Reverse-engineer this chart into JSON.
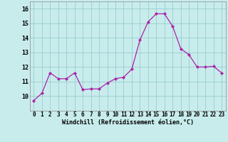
{
  "x": [
    0,
    1,
    2,
    3,
    4,
    5,
    6,
    7,
    8,
    9,
    10,
    11,
    12,
    13,
    14,
    15,
    16,
    17,
    18,
    19,
    20,
    21,
    22,
    23
  ],
  "y": [
    9.7,
    10.2,
    11.6,
    11.2,
    11.2,
    11.6,
    10.45,
    10.5,
    10.5,
    10.9,
    11.2,
    11.3,
    11.85,
    13.85,
    15.1,
    15.65,
    15.65,
    14.8,
    13.25,
    12.85,
    12.0,
    12.0,
    12.05,
    11.6
  ],
  "line_color": "#aa22aa",
  "marker_color": "#aa22aa",
  "bg_color": "#c8ecec",
  "grid_color": "#99cccc",
  "xlabel_text": "Windchill (Refroidissement éolien,°C)",
  "xlim": [
    -0.5,
    23.5
  ],
  "ylim": [
    9.0,
    16.5
  ],
  "yticks": [
    10,
    11,
    12,
    13,
    14,
    15,
    16
  ],
  "xticks": [
    0,
    1,
    2,
    3,
    4,
    5,
    6,
    7,
    8,
    9,
    10,
    11,
    12,
    13,
    14,
    15,
    16,
    17,
    18,
    19,
    20,
    21,
    22,
    23
  ],
  "tick_fontsize": 5.5,
  "xlabel_fontsize": 6.0
}
